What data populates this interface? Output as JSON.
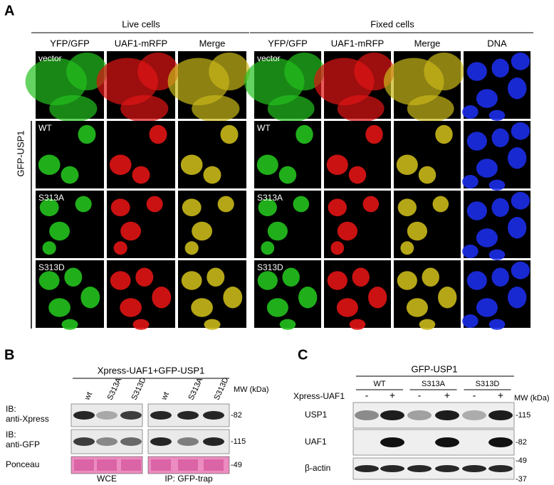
{
  "panel_a": {
    "label": "A",
    "groups": [
      {
        "title": "Live cells",
        "columns": [
          "YFP/GFP",
          "UAF1-mRFP",
          "Merge"
        ]
      },
      {
        "title": "Fixed cells",
        "columns": [
          "YFP/GFP",
          "UAF1-mRFP",
          "Merge",
          "DNA"
        ]
      }
    ],
    "side_label": "GFP-USP1",
    "rows": [
      "vector",
      "WT",
      "S313A",
      "S313D"
    ]
  },
  "panel_b": {
    "label": "B",
    "title": "Xpress-UAF1+GFP-USP1",
    "lanes": [
      "wt",
      "S313A",
      "S313D",
      "wt",
      "S313A",
      "S313D"
    ],
    "mw_header": "MW (kDa)",
    "blots": [
      {
        "label": [
          "IB:",
          "anti-Xpress"
        ],
        "mw": "-82"
      },
      {
        "label": [
          "IB:",
          "anti-GFP"
        ],
        "mw": "-115"
      },
      {
        "label": [
          "Ponceau"
        ],
        "mw": "-49"
      }
    ],
    "groups": [
      "WCE",
      "IP: GFP-trap"
    ]
  },
  "panel_c": {
    "label": "C",
    "title": "GFP-USP1",
    "groups": [
      "WT",
      "S313A",
      "S313D"
    ],
    "treatment": {
      "label": "Xpress-UAF1",
      "signs": [
        "-",
        "+",
        "-",
        "+",
        "-",
        "+"
      ]
    },
    "mw_header": "MW (kDa)",
    "blots": [
      {
        "label": "USP1",
        "mw": [
          "-115"
        ]
      },
      {
        "label": "UAF1",
        "mw": [
          "-82"
        ]
      },
      {
        "label": "β-actin",
        "mw": [
          "-49",
          "-37"
        ]
      }
    ]
  }
}
